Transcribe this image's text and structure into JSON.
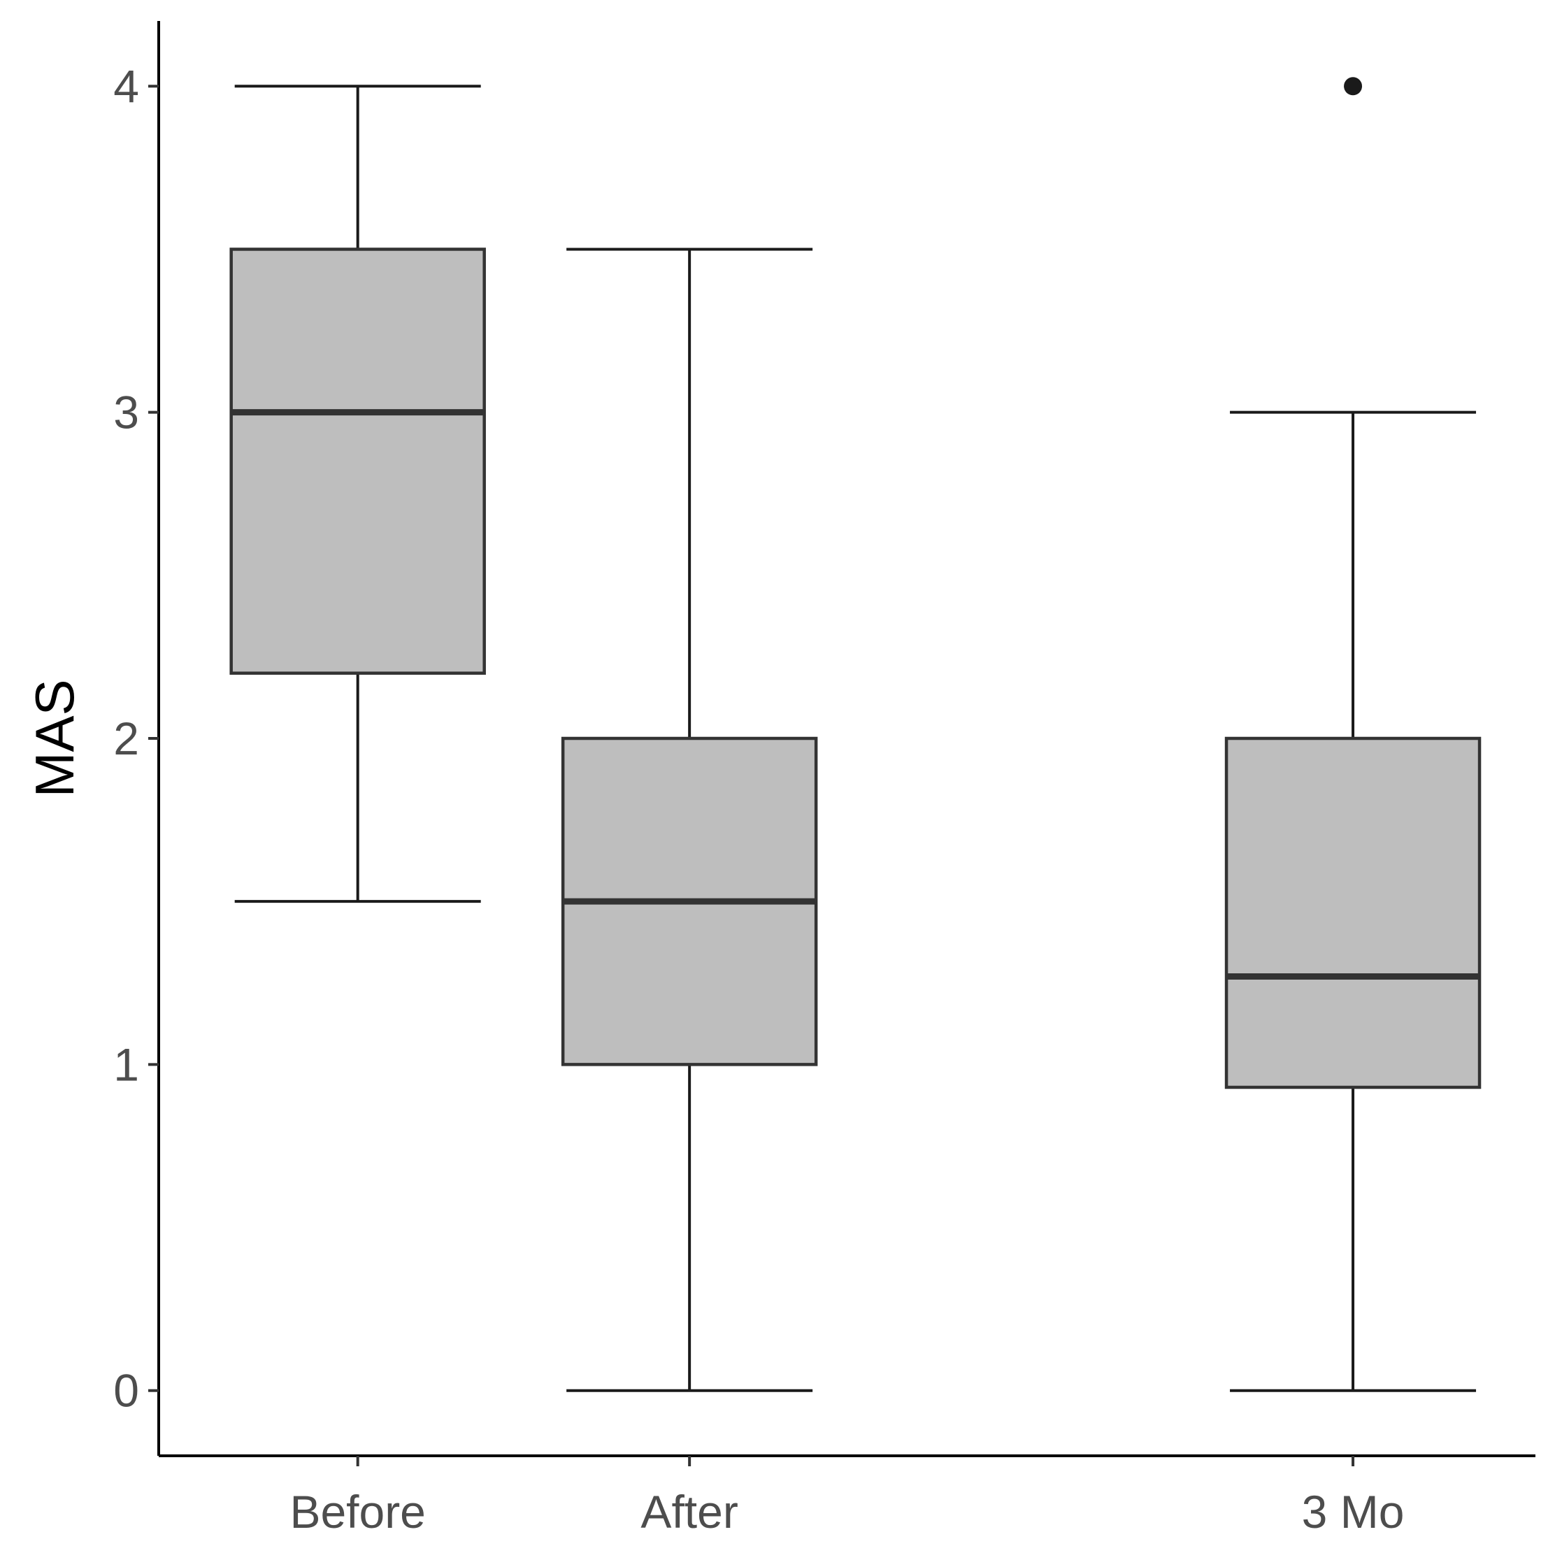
{
  "chart_data": {
    "type": "box",
    "title": "",
    "xlabel": "",
    "ylabel": "MAS",
    "ylim": [
      -0.2,
      4.2
    ],
    "yticks": [
      0,
      1,
      2,
      3,
      4
    ],
    "categories": [
      "Before",
      "After",
      "3 Mo"
    ],
    "x_positions": [
      1,
      2,
      4
    ],
    "xlim": [
      0.4,
      4.55
    ],
    "grid": false,
    "legend": "none",
    "boxes": [
      {
        "category": "Before",
        "whisker_low": 1.5,
        "q1": 2.2,
        "median": 3.0,
        "q3": 3.5,
        "whisker_high": 4.0,
        "outliers": []
      },
      {
        "category": "After",
        "whisker_low": 0.0,
        "q1": 1.0,
        "median": 1.5,
        "q3": 2.0,
        "whisker_high": 3.5,
        "outliers": []
      },
      {
        "category": "3 Mo",
        "whisker_low": 0.0,
        "q1": 0.93,
        "median": 1.27,
        "q3": 2.0,
        "whisker_high": 3.0,
        "outliers": [
          4.0
        ]
      }
    ],
    "colors": {
      "box_fill": "#bebebe",
      "box_stroke": "#333333",
      "whisker": "#1a1a1a",
      "outlier": "#1a1a1a",
      "axis": "#000000"
    }
  }
}
